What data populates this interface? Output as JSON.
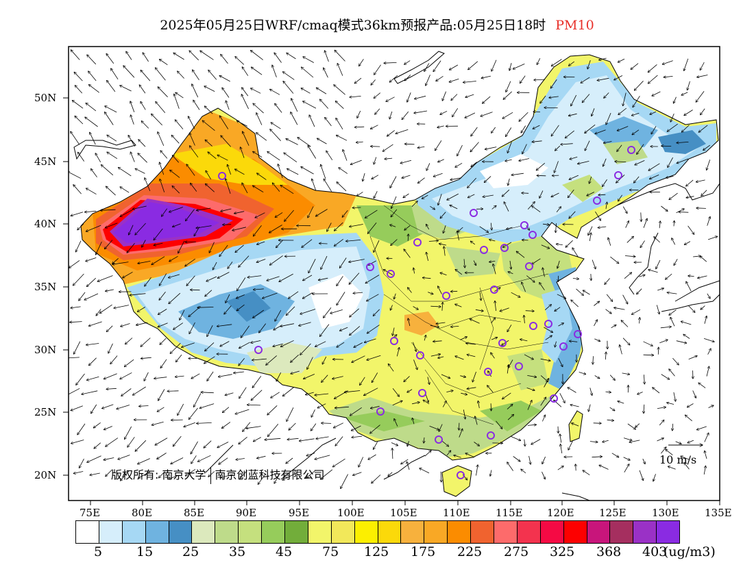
{
  "title": {
    "main": "2025年05月25日WRF/cmaq模式36km预报产品:05月25日18时",
    "pollutant": "PM10",
    "pollutant_color": "#e8302a"
  },
  "latitude_labels": [
    "50N",
    "45N",
    "40N",
    "35N",
    "30N",
    "25N",
    "20N"
  ],
  "longitude_labels": [
    "75E",
    "80E",
    "85E",
    "90E",
    "95E",
    "100E",
    "105E",
    "110E",
    "115E",
    "120E",
    "125E",
    "130E",
    "135E"
  ],
  "copyright": {
    "prefix": "版权所有:",
    "org1": "南京大学",
    "org2": "南京创蓝科技有限公司"
  },
  "reference_vector": "10 m/s",
  "legend": {
    "colors": [
      "#ffffff",
      "#d6eefb",
      "#a6d8f4",
      "#6fb3e0",
      "#468fc4",
      "#dce9bd",
      "#bedb8a",
      "#c5e07e",
      "#96cc5b",
      "#72ad3a",
      "#f2f56a",
      "#f2e85a",
      "#fcef00",
      "#fbd90a",
      "#f7b13d",
      "#f9a825",
      "#fb8c00",
      "#f0632f",
      "#fd6b6b",
      "#f3334e",
      "#f50a44",
      "#fd0000",
      "#c8157b",
      "#a52f5f",
      "#9a31c6",
      "#8a2be2"
    ],
    "labels": [
      "5",
      "15",
      "25",
      "35",
      "45",
      "75",
      "125",
      "175",
      "225",
      "275",
      "325",
      "368",
      "403"
    ],
    "unit": "(ug/m3)"
  }
}
